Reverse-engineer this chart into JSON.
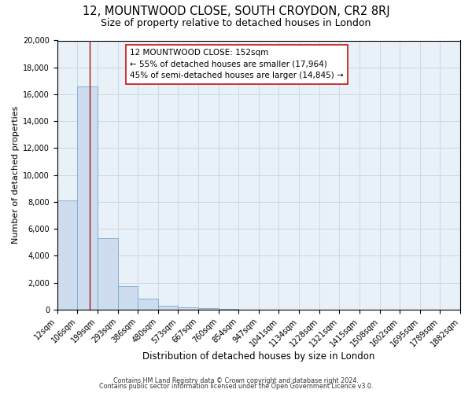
{
  "title": "12, MOUNTWOOD CLOSE, SOUTH CROYDON, CR2 8RJ",
  "subtitle": "Size of property relative to detached houses in London",
  "xlabel": "Distribution of detached houses by size in London",
  "ylabel": "Number of detached properties",
  "bar_values": [
    8100,
    16600,
    5300,
    1750,
    800,
    300,
    150,
    100,
    75,
    0,
    0,
    0,
    0,
    0,
    0,
    0,
    0,
    0,
    0,
    0
  ],
  "bar_labels": [
    "12sqm",
    "106sqm",
    "199sqm",
    "293sqm",
    "386sqm",
    "480sqm",
    "573sqm",
    "667sqm",
    "760sqm",
    "854sqm",
    "947sqm",
    "1041sqm",
    "1134sqm",
    "1228sqm",
    "1321sqm",
    "1415sqm",
    "1508sqm",
    "1602sqm",
    "1695sqm",
    "1789sqm",
    "1882sqm"
  ],
  "bar_color": "#cddcee",
  "bar_edge_color": "#7aabcc",
  "annotation_line1": "12 MOUNTWOOD CLOSE: 152sqm",
  "annotation_line2": "← 55% of detached houses are smaller (17,964)",
  "annotation_line3": "45% of semi-detached houses are larger (14,845) →",
  "red_line_x": 1.62,
  "ylim": [
    0,
    20000
  ],
  "yticks": [
    0,
    2000,
    4000,
    6000,
    8000,
    10000,
    12000,
    14000,
    16000,
    18000,
    20000
  ],
  "grid_color": "#c8d4e0",
  "background_color": "#e8f0f8",
  "footer_line1": "Contains HM Land Registry data © Crown copyright and database right 2024.",
  "footer_line2": "Contains public sector information licensed under the Open Government Licence v3.0.",
  "annotation_fontsize": 7.5,
  "title_fontsize": 10.5,
  "subtitle_fontsize": 9.0,
  "xlabel_fontsize": 8.5,
  "ylabel_fontsize": 8.0,
  "tick_fontsize": 7.0,
  "footer_fontsize": 5.8
}
